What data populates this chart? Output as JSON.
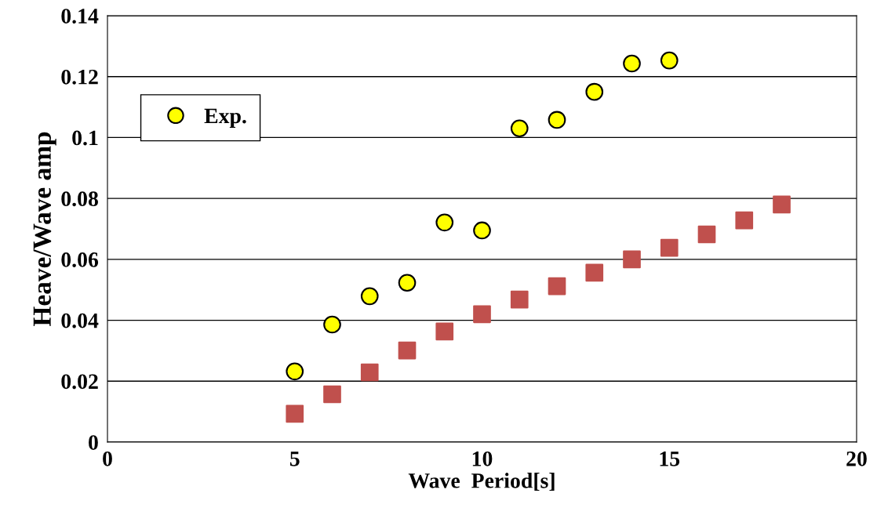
{
  "chart_data": {
    "type": "scatter",
    "xlabel": "Wave  Period[s]",
    "ylabel": "Heave/Wave amp",
    "xlim": [
      0,
      20
    ],
    "xticks": [
      0,
      5,
      10,
      15,
      20
    ],
    "ylim": [
      0,
      0.14
    ],
    "yticks": [
      0,
      0.02,
      0.04,
      0.06,
      0.08,
      {
        "value": 0.1,
        "label": "0.1"
      },
      0.12,
      0.14
    ],
    "grid": "y",
    "legend": "top left",
    "series": [
      {
        "color": "#c0504d",
        "marker": "square",
        "x": [
          5,
          6,
          7,
          8,
          9,
          10,
          11,
          12,
          13,
          14,
          15,
          16,
          17,
          18
        ],
        "values": [
          0.0093,
          0.0157,
          0.0229,
          0.0301,
          0.0363,
          0.042,
          0.0468,
          0.0512,
          0.0556,
          0.06,
          0.0638,
          0.0682,
          0.0728,
          0.078
        ]
      },
      {
        "name": "Exp.",
        "color": "#ffff00",
        "marker": "circle",
        "x": [
          5,
          6,
          7,
          8,
          9,
          10,
          11,
          12,
          13,
          14,
          15
        ],
        "values": [
          0.0232,
          0.0386,
          0.0479,
          0.0523,
          0.0721,
          0.0695,
          0.103,
          0.1058,
          0.115,
          0.1243,
          0.1253
        ]
      }
    ]
  }
}
